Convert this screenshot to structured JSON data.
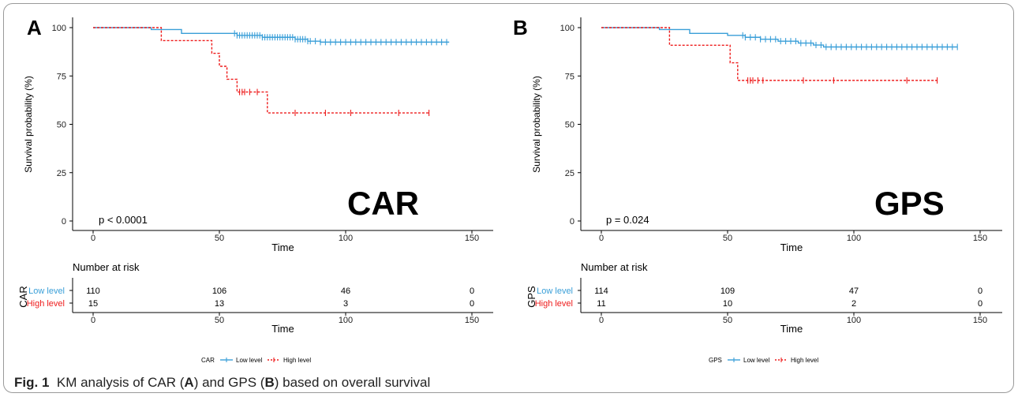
{
  "caption": {
    "label": "Fig. 1",
    "text_before": "KM analysis of CAR (",
    "bold_a": "A",
    "text_mid": ") and GPS (",
    "bold_b": "B",
    "text_after": ") based on overall survival"
  },
  "colors": {
    "low": "#3a9fd8",
    "high": "#ee1c1c",
    "axis": "#000000"
  },
  "chart_data": [
    {
      "panel": "A",
      "type": "line",
      "big_label": "CAR",
      "p_value": "p < 0.0001",
      "xlabel": "Time",
      "ylabel": "Survival probability (%)",
      "xlim": [
        0,
        160
      ],
      "ylim": [
        0,
        100
      ],
      "xticks": [
        "0",
        "50",
        "100",
        "150"
      ],
      "yticks": [
        "0",
        "25",
        "50",
        "75",
        "100"
      ],
      "series": [
        {
          "name": "Low level",
          "steps": [
            [
              0,
              100
            ],
            [
              23,
              99
            ],
            [
              35,
              97
            ],
            [
              57,
              96
            ],
            [
              67,
              95
            ],
            [
              80,
              94
            ],
            [
              85,
              93
            ],
            [
              90,
              92.5
            ],
            [
              141,
              92.5
            ]
          ],
          "censors": [
            56,
            57,
            58,
            59,
            60,
            61,
            62,
            63,
            64,
            65,
            66,
            67,
            68,
            69,
            70,
            71,
            72,
            73,
            74,
            75,
            76,
            77,
            78,
            79,
            80,
            81,
            82,
            83,
            84,
            85,
            86,
            88,
            90,
            92,
            94,
            96,
            98,
            100,
            102,
            104,
            106,
            108,
            110,
            112,
            114,
            116,
            118,
            120,
            122,
            124,
            126,
            128,
            130,
            132,
            134,
            136,
            138,
            140
          ]
        },
        {
          "name": "High level",
          "steps": [
            [
              0,
              100
            ],
            [
              27,
              93.3
            ],
            [
              47,
              86.7
            ],
            [
              50,
              80
            ],
            [
              53,
              73.3
            ],
            [
              57,
              66.7
            ],
            [
              69,
              55.9
            ],
            [
              133,
              55.9
            ]
          ],
          "censors": [
            58,
            59,
            60,
            62,
            65,
            80,
            92,
            102,
            121,
            133
          ]
        }
      ],
      "risk_table": {
        "title": "Number at risk",
        "ylabel": "CAR",
        "xlabel": "Time",
        "rows": [
          {
            "label": "Low level",
            "values": [
              "110",
              "106",
              "46",
              "0"
            ]
          },
          {
            "label": "High level",
            "values": [
              "15",
              "13",
              "3",
              "0"
            ]
          }
        ]
      },
      "legend": {
        "title": "CAR",
        "items": [
          "Low level",
          "High level"
        ]
      }
    },
    {
      "panel": "B",
      "type": "line",
      "big_label": "GPS",
      "p_value": "p = 0.024",
      "xlabel": "Time",
      "ylabel": "Survival probability (%)",
      "xlim": [
        0,
        160
      ],
      "ylim": [
        0,
        100
      ],
      "xticks": [
        "0",
        "50",
        "100",
        "150"
      ],
      "yticks": [
        "0",
        "25",
        "50",
        "75",
        "100"
      ],
      "series": [
        {
          "name": "Low level",
          "steps": [
            [
              0,
              100
            ],
            [
              23,
              99
            ],
            [
              35,
              97
            ],
            [
              50,
              96
            ],
            [
              57,
              95
            ],
            [
              63,
              94
            ],
            [
              70,
              93
            ],
            [
              78,
              92
            ],
            [
              84,
              91
            ],
            [
              88,
              90
            ],
            [
              141,
              90
            ]
          ],
          "censors": [
            56,
            57,
            59,
            61,
            63,
            65,
            67,
            69,
            71,
            73,
            75,
            77,
            79,
            81,
            83,
            85,
            87,
            89,
            91,
            93,
            95,
            97,
            99,
            101,
            103,
            105,
            107,
            109,
            111,
            113,
            115,
            117,
            119,
            121,
            123,
            125,
            127,
            129,
            131,
            133,
            135,
            137,
            139,
            141
          ]
        },
        {
          "name": "High level",
          "steps": [
            [
              0,
              100
            ],
            [
              27,
              90.9
            ],
            [
              51,
              81.8
            ],
            [
              54,
              72.7
            ],
            [
              133,
              72.7
            ]
          ],
          "censors": [
            58,
            59,
            60,
            62,
            64,
            80,
            92,
            121,
            133
          ]
        }
      ],
      "risk_table": {
        "title": "Number at risk",
        "ylabel": "GPS",
        "xlabel": "Time",
        "rows": [
          {
            "label": "Low level",
            "values": [
              "114",
              "109",
              "47",
              "0"
            ]
          },
          {
            "label": "High level",
            "values": [
              "11",
              "10",
              "2",
              "0"
            ]
          }
        ]
      },
      "legend": {
        "title": "GPS",
        "items": [
          "Low level",
          "High level"
        ]
      }
    }
  ]
}
